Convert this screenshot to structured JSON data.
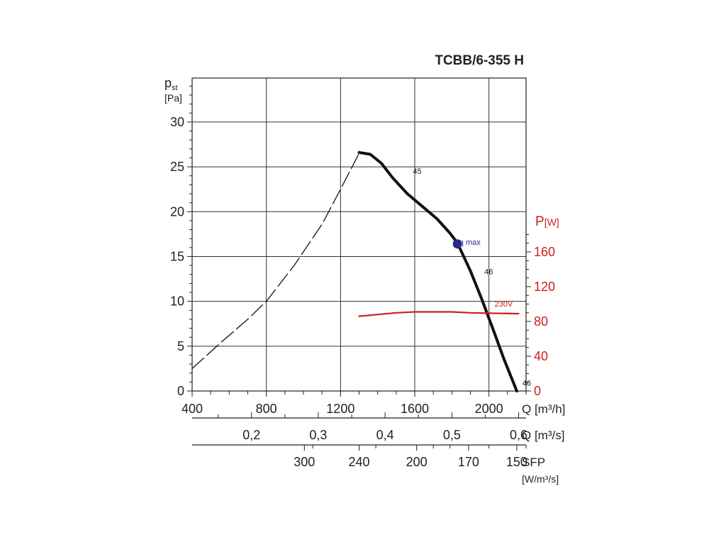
{
  "chart_data": {
    "type": "line",
    "title": "TCBB/6-355 H",
    "y_axis": {
      "symbol": "p",
      "sub": "st",
      "unit": "[Pa]",
      "ticks": [
        "0",
        "5",
        "10",
        "15",
        "20",
        "25",
        "30"
      ],
      "range": [
        0,
        30
      ]
    },
    "right_axis": {
      "symbol": "P",
      "unit": "[W]",
      "color": "#cc1f1f",
      "ticks": [
        "0",
        "40",
        "80",
        "120",
        "160"
      ],
      "range": [
        0,
        160
      ]
    },
    "x_axis_flow_h": {
      "label": "Q [m³/h]",
      "ticks": [
        "400",
        "800",
        "1200",
        "1600",
        "2000"
      ],
      "range": [
        400,
        2200
      ]
    },
    "x_axis_flow_s": {
      "label": "Q [m³/s]",
      "ticks": [
        "0,2",
        "0,3",
        "0,4",
        "0,5",
        "0,6"
      ]
    },
    "x_axis_sfp": {
      "label": "SFP",
      "unit": "[W/m³/s]",
      "ticks": [
        "300",
        "240",
        "200",
        "170",
        "150"
      ]
    },
    "series": [
      {
        "kind": "stall-region",
        "style": "dashed",
        "color": "#111111",
        "points": [
          [
            400,
            2.5
          ],
          [
            560,
            5.5
          ],
          [
            700,
            8
          ],
          [
            800,
            10
          ],
          [
            950,
            14
          ],
          [
            1100,
            18.6
          ],
          [
            1200,
            22.5
          ],
          [
            1300,
            26.5
          ]
        ]
      },
      {
        "kind": "pressure",
        "style": "solid",
        "color": "#111111",
        "points": [
          [
            1300,
            26.6
          ],
          [
            1360,
            26.4
          ],
          [
            1420,
            25.4
          ],
          [
            1480,
            23.8
          ],
          [
            1560,
            22
          ],
          [
            1640,
            20.6
          ],
          [
            1720,
            19.2
          ],
          [
            1790,
            17.6
          ],
          [
            1830,
            16.5
          ],
          [
            1900,
            13.4
          ],
          [
            1960,
            10.3
          ],
          [
            2020,
            7
          ],
          [
            2080,
            3.6
          ],
          [
            2150,
            0
          ]
        ]
      },
      {
        "kind": "power",
        "name": "230V",
        "style": "solid",
        "color": "#cc1f1f",
        "points": [
          [
            1300,
            86
          ],
          [
            1400,
            88
          ],
          [
            1500,
            90
          ],
          [
            1600,
            91
          ],
          [
            1700,
            91
          ],
          [
            1800,
            91
          ],
          [
            1900,
            90
          ],
          [
            2000,
            89.5
          ],
          [
            2160,
            89
          ]
        ]
      }
    ],
    "annotations": [
      {
        "text": "45",
        "x": 1590,
        "y": 24.2
      },
      {
        "text": "η max",
        "x": 1840,
        "y": 16.3
      },
      {
        "text": "46",
        "x": 1975,
        "y": 13
      },
      {
        "text": "230V",
        "x": 2030,
        "y": 9.4
      },
      {
        "text": "46",
        "x": 2180,
        "y": 0.6
      }
    ],
    "marker": {
      "name": "η max",
      "x": 1830,
      "y": 16.4,
      "color": "#26288a"
    },
    "grid": true
  }
}
